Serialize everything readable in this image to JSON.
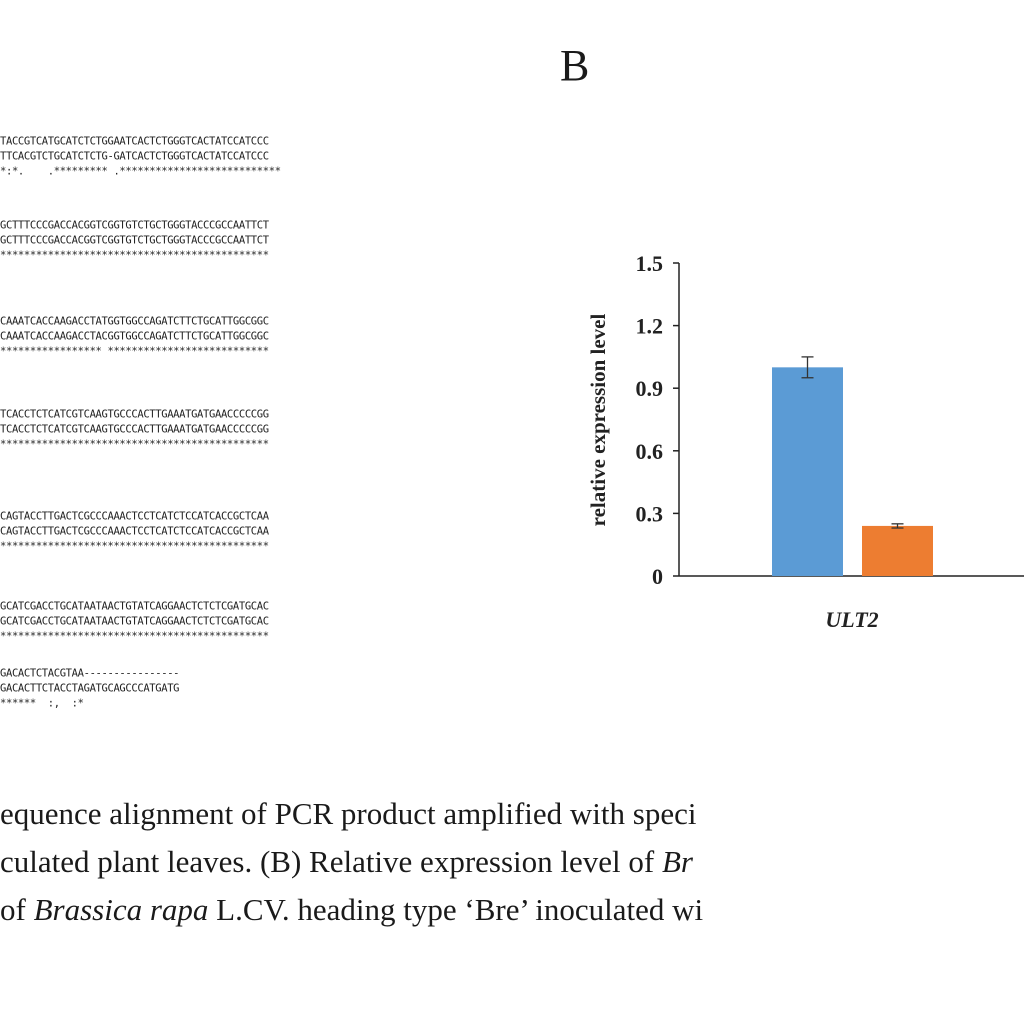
{
  "panel_label": "B",
  "alignment": {
    "blocks": [
      [
        "TACCGTCATGCATCTCTGGAATCACTCTGGGTCACTATCCATCCC",
        "TTCACGTCTGCATCTCTG-GATCACTCTGGGTCACTATCCATCCC",
        "*:*.    .********* .***************************"
      ],
      [
        "GCTTTCCCGACCACGGTCGGTGTCTGCTGGGTACCCGCCAATTCT",
        "GCTTTCCCGACCACGGTCGGTGTCTGCTGGGTACCCGCCAATTCT",
        "*********************************************"
      ],
      [
        "CAAATCACCAAGACCTATGGTGGCCAGATCTTCTGCATTGGCGGC",
        "CAAATCACCAAGACCTACGGTGGCCAGATCTTCTGCATTGGCGGC",
        "***************** ***************************"
      ],
      [
        "TCACCTCTCATCGTCAAGTGCCCACTTGAAATGATGAACCCCCGG",
        "TCACCTCTCATCGTCAAGTGCCCACTTGAAATGATGAACCCCCGG",
        "*********************************************"
      ],
      [
        "CAGTACCTTGACTCGCCCAAACTCCTCATCTCCATCACCGCTCAA",
        "CAGTACCTTGACTCGCCCAAACTCCTCATCTCCATCACCGCTCAA",
        "*********************************************"
      ],
      [
        "GCATCGACCTGCATAATAACTGTATCAGGAACTCTCTCGATGCAC",
        "GCATCGACCTGCATAATAACTGTATCAGGAACTCTCTCGATGCAC",
        "*********************************************"
      ],
      [
        "GACACTCTACGTAA----------------",
        "GACACTTCTACCTAGATGCAGCCCATGATG",
        "******  :,  :*"
      ]
    ]
  },
  "chart_data": {
    "type": "bar",
    "ylabel": "relative expression level",
    "ylim": [
      0,
      1.5
    ],
    "yticks": [
      "1.5",
      "1.2",
      "0.9",
      "0.6",
      "0.3",
      "0"
    ],
    "categories": [
      "ULT2"
    ],
    "series": [
      {
        "values": [
          1.0
        ],
        "errors": [
          0.05
        ],
        "color": "#5b9bd5"
      },
      {
        "values": [
          0.24
        ],
        "errors": [
          0.01
        ],
        "color": "#ed7d31"
      }
    ]
  },
  "caption": {
    "line1": "equence alignment of PCR product amplified with speci",
    "line2_a": "culated plant leaves. (B) Relative expression level of ",
    "line2_b": "Br",
    "line3_a": "of ",
    "line3_b": "Brassica rapa",
    "line3_c": " L.CV. heading type ‘Bre’ inoculated wi"
  }
}
